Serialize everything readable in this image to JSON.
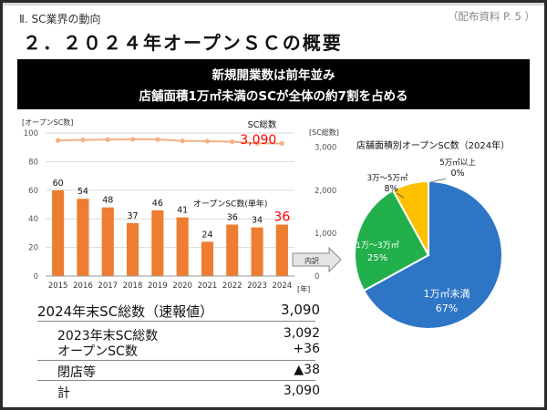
{
  "header": {
    "section": "Ⅱ. SC業界の動向",
    "doc_ref": "（配布資料 P. 5 ）",
    "title": "２．２０２４年オープンＳＣの概要"
  },
  "banner": {
    "line1": "新規開業数は前年並み",
    "line2": "店舗面積1万㎡未満のSCが全体の約7割を占める"
  },
  "colors": {
    "bar": "#ed7d31",
    "line": "#f4b183",
    "highlight": "#ff0000",
    "pie_large": "#2e75c6",
    "pie_mid": "#22b04c",
    "pie_small": "#ffc000"
  },
  "chart_data": [
    {
      "type": "bar",
      "left_axis_label": "[オープンSC数]",
      "right_axis_label": "[SC総数]",
      "x_unit": "[年]",
      "categories": [
        "2015",
        "2016",
        "2017",
        "2018",
        "2019",
        "2020",
        "2021",
        "2022",
        "2023",
        "2024"
      ],
      "left_ticks": [
        "0",
        "20",
        "40",
        "60",
        "80",
        "100"
      ],
      "right_ticks": [
        "0",
        "1,000",
        "2,000",
        "3,000"
      ],
      "ylim_left": [
        0,
        100
      ],
      "ylim_right": [
        0,
        3333
      ],
      "series": [
        {
          "name": "オープンSC数(単年)",
          "values": [
            60,
            54,
            48,
            37,
            46,
            41,
            24,
            36,
            34,
            36
          ],
          "axis": "left"
        },
        {
          "name": "SC総数",
          "values": [
            3161,
            3173,
            3179,
            3186,
            3184,
            3150,
            3142,
            3131,
            3092,
            3090
          ],
          "axis": "right"
        }
      ],
      "labels": {
        "total_name": "SC総数",
        "total_value": "3,090",
        "open_name": "オープンSC数(単年)",
        "open_value": "36"
      },
      "arrow_label": "内訳"
    },
    {
      "type": "pie",
      "title": "店舗面積別オープンSC数（2024年）",
      "slices": [
        {
          "label": "1万㎡未満",
          "value": 67,
          "display": "67%"
        },
        {
          "label": "1万～3万㎡",
          "value": 25,
          "display": "25%"
        },
        {
          "label": "3万～5万㎡",
          "value": 8,
          "display": "8%"
        },
        {
          "label": "5万㎡以上",
          "value": 0,
          "display": "0%"
        }
      ]
    }
  ],
  "summary": {
    "heading_label": "2024年末SC総数（速報値）",
    "heading_value": "3,090",
    "rows": [
      {
        "label": "2023年末SC総数",
        "value": "3,092"
      },
      {
        "label": "オープンSC数",
        "value": "+36"
      },
      {
        "label": "閉店等",
        "value": "▲38"
      },
      {
        "label": "計",
        "value": "3,090"
      }
    ]
  }
}
